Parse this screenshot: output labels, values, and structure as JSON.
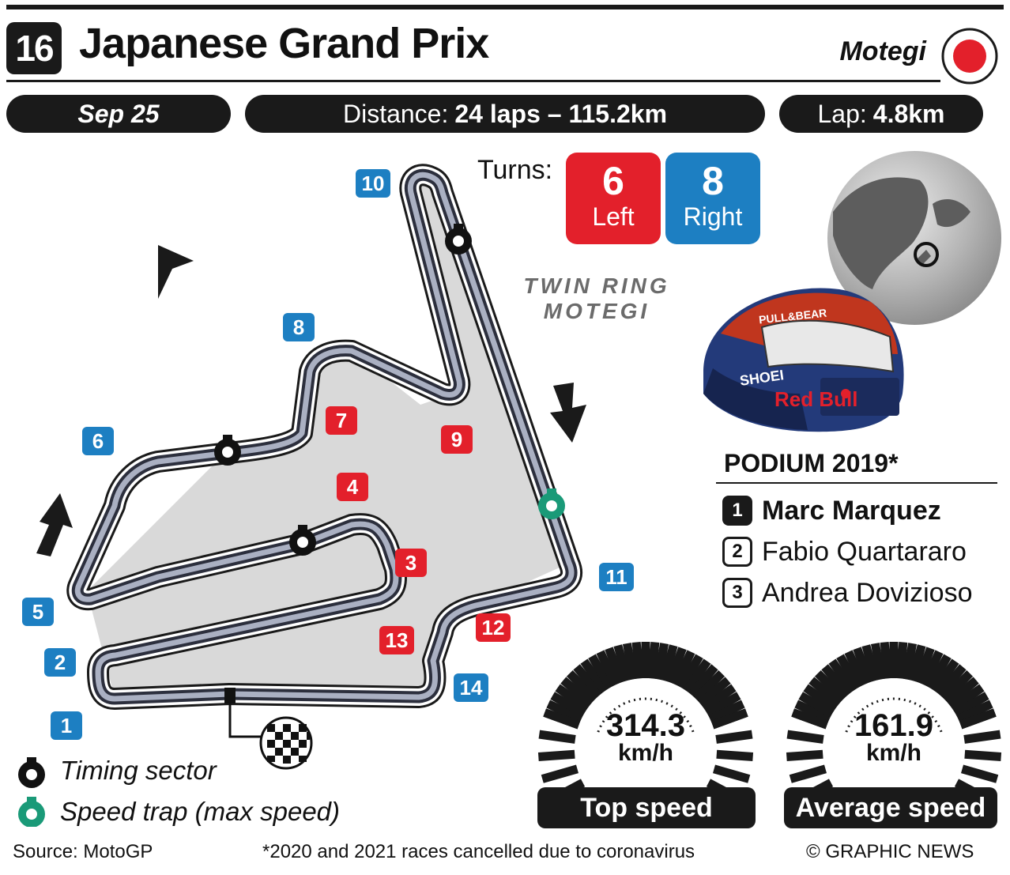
{
  "header": {
    "round": "16",
    "title": "Japanese Grand Prix",
    "venue": "Motegi",
    "flag_color": "#e3202b"
  },
  "info_bar": {
    "date": "Sep 25",
    "distance_label": "Distance:",
    "distance_value": "24 laps – 115.2km",
    "lap_label": "Lap:",
    "lap_value": "4.8km"
  },
  "turns": {
    "label": "Turns:",
    "left_count": "6",
    "left_label": "Left",
    "right_count": "8",
    "right_label": "Right"
  },
  "circuit": {
    "name_line1": "TWIN RING",
    "name_line2": "MOTEGI",
    "right_turn_color": "#1d7fc2",
    "left_turn_color": "#e3202b",
    "corners_right": [
      "1",
      "2",
      "5",
      "6",
      "8",
      "10",
      "11",
      "14"
    ],
    "corners_left": [
      "3",
      "4",
      "7",
      "9",
      "12",
      "13"
    ]
  },
  "podium": {
    "title": "PODIUM 2019*",
    "entries": [
      {
        "pos": "1",
        "name": "Marc Marquez"
      },
      {
        "pos": "2",
        "name": "Fabio Quartararo"
      },
      {
        "pos": "3",
        "name": "Andrea Dovizioso"
      }
    ]
  },
  "speeds": {
    "top_value": "314.3",
    "top_unit": "km/h",
    "top_label": "Top speed",
    "avg_value": "161.9",
    "avg_unit": "km/h",
    "avg_label": "Average speed"
  },
  "legend": {
    "timing_sector": "Timing sector",
    "speed_trap": "Speed trap (max speed)",
    "speed_trap_color": "#1a9a78"
  },
  "helmet_logos": {
    "sponsor_1": "PULL&BEAR",
    "sponsor_2": "SHOEI",
    "sponsor_3": "Red Bull"
  },
  "footer": {
    "source": "Source: MotoGP",
    "note": "*2020 and 2021 races cancelled due to coronavirus",
    "credit": "© GRAPHIC NEWS"
  }
}
